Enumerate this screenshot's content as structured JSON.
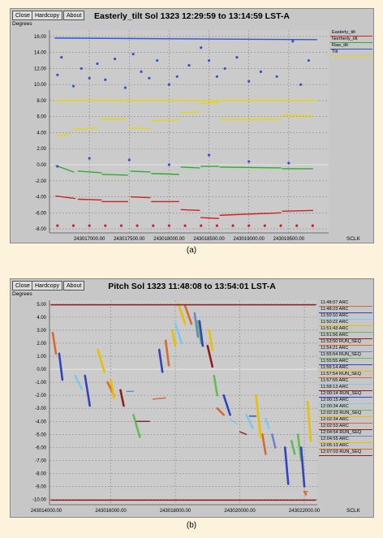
{
  "charts": {
    "a": {
      "buttons": {
        "close": "Close",
        "hardcopy": "Hardcopy",
        "about": "About"
      },
      "y_unit": "Degrees",
      "x_unit": "SCLK",
      "caption": "(a)"
    },
    "b": {
      "buttons": {
        "close": "Close",
        "hardcopy": "Hardcopy",
        "about": "About"
      },
      "y_unit": "Degrees",
      "x_unit": "SCLK",
      "caption": "(b)"
    }
  },
  "chart_data": [
    {
      "type": "scatter",
      "title": "Easterly_tilt Sol 1323 12:29:59 to 13:14:59 LST-A",
      "ylabel": "Degrees",
      "xlabel": "SCLK",
      "ylim": [
        -8.5,
        16.8
      ],
      "xlim": [
        243016500,
        243020000
      ],
      "y_ticks": [
        "16.00",
        "14.00",
        "12.00",
        "10.00",
        "8.00",
        "6.00",
        "4.00",
        "2.00",
        "0.00",
        "-2.00",
        "-4.00",
        "-6.00",
        "-8.00"
      ],
      "x_ticks": [
        "243017000.00",
        "243017500.00",
        "243018000.00",
        "243018500.00",
        "243019000.00",
        "243019500.00"
      ],
      "legend_placement": "top-right",
      "series": [
        {
          "name": "Easterly_tilt",
          "color": "#cc2222",
          "segments": [
            [
              243016580,
              -3.9,
              243016820,
              -4.2
            ],
            [
              243016860,
              -4.3,
              243017150,
              -4.4
            ],
            [
              243017160,
              -4.6,
              243017480,
              -4.6
            ],
            [
              243017520,
              -4.0,
              243017760,
              -4.1
            ],
            [
              243017780,
              -4.6,
              243018120,
              -4.6
            ],
            [
              243018150,
              -5.6,
              243018380,
              -5.7
            ],
            [
              243018400,
              -6.6,
              243018620,
              -6.7
            ],
            [
              243018640,
              -6.3,
              243019400,
              -6.0
            ],
            [
              243019420,
              -5.8,
              243019800,
              -5.7
            ]
          ],
          "markers": [
            [
              243016600,
              -7.6
            ],
            [
              243016800,
              -7.6
            ],
            [
              243017000,
              -7.6
            ],
            [
              243017200,
              -7.6
            ],
            [
              243017400,
              -7.6
            ],
            [
              243017600,
              -7.6
            ],
            [
              243017800,
              -7.6
            ],
            [
              243018000,
              -7.6
            ],
            [
              243018200,
              -7.6
            ],
            [
              243018400,
              -7.6
            ],
            [
              243018600,
              -7.6
            ],
            [
              243018800,
              -7.6
            ],
            [
              243019000,
              -7.6
            ],
            [
              243019200,
              -7.6
            ],
            [
              243019400,
              -7.6
            ],
            [
              243019600,
              -7.6
            ],
            [
              243019800,
              -7.6
            ]
          ]
        },
        {
          "name": "Northerly_tilt",
          "color": "#33aa33",
          "segments": [
            [
              243016580,
              -0.1,
              243016800,
              -0.9
            ],
            [
              243016860,
              -0.8,
              243017150,
              -1.0
            ],
            [
              243017160,
              -1.2,
              243017480,
              -1.3
            ],
            [
              243017520,
              -0.8,
              243017760,
              -0.9
            ],
            [
              243017780,
              -1.1,
              243018120,
              -1.2
            ],
            [
              243018150,
              -0.3,
              243018380,
              -0.4
            ],
            [
              243018400,
              -0.2,
              243018620,
              -0.2
            ],
            [
              243018640,
              -0.3,
              243019400,
              -0.4
            ],
            [
              243019420,
              -0.5,
              243019800,
              -0.5
            ]
          ],
          "markers": []
        },
        {
          "name": "Raw_tilt",
          "color": "#3355cc",
          "segments": [
            [
              243016570,
              15.8,
              243019850,
              15.6
            ]
          ],
          "markers": [
            [
              243016600,
              11.2
            ],
            [
              243016650,
              13.4
            ],
            [
              243016800,
              9.8
            ],
            [
              243016900,
              12.0
            ],
            [
              243017000,
              10.8
            ],
            [
              243017100,
              12.6
            ],
            [
              243017200,
              10.6
            ],
            [
              243017320,
              13.2
            ],
            [
              243017450,
              9.6
            ],
            [
              243017550,
              13.8
            ],
            [
              243017650,
              11.6
            ],
            [
              243017750,
              10.8
            ],
            [
              243017850,
              13.0
            ],
            [
              243018000,
              10.0
            ],
            [
              243018100,
              11.0
            ],
            [
              243018250,
              12.4
            ],
            [
              243018400,
              14.6
            ],
            [
              243018500,
              13.0
            ],
            [
              243018600,
              11.0
            ],
            [
              243018700,
              12.0
            ],
            [
              243018850,
              13.4
            ],
            [
              243019000,
              10.4
            ],
            [
              243019150,
              11.6
            ],
            [
              243019350,
              11.0
            ],
            [
              243019550,
              15.4
            ],
            [
              243019650,
              10.0
            ],
            [
              243019750,
              13.0
            ],
            [
              243016600,
              -0.2
            ],
            [
              243017000,
              0.8
            ],
            [
              243017500,
              0.6
            ],
            [
              243018000,
              0.0
            ],
            [
              243018500,
              1.2
            ],
            [
              243019000,
              0.4
            ],
            [
              243019500,
              0.2
            ]
          ]
        },
        {
          "name": "Tilt",
          "color": "#e8d800",
          "segments": [
            [
              243016570,
              8.0,
              243019850,
              8.0
            ],
            [
              243016600,
              3.6,
              243016760,
              3.8
            ],
            [
              243016800,
              4.4,
              243017100,
              4.6
            ],
            [
              243017150,
              5.7,
              243017460,
              5.7
            ],
            [
              243017500,
              4.6,
              243017760,
              4.5
            ],
            [
              243017780,
              5.5,
              243018120,
              5.6
            ],
            [
              243018150,
              6.5,
              243018380,
              6.6
            ],
            [
              243018400,
              7.6,
              243018620,
              7.8
            ],
            [
              243018640,
              5.6,
              243019400,
              5.7
            ],
            [
              243019420,
              6.2,
              243019800,
              6.1
            ]
          ],
          "markers": []
        }
      ]
    },
    {
      "type": "line",
      "title": "Pitch Sol 1323 11:48:08 to 13:54:01 LST-A",
      "ylabel": "Degrees",
      "xlabel": "SCLK",
      "ylim": [
        -10.4,
        5.3
      ],
      "xlim": [
        243014100,
        243022400
      ],
      "y_ticks": [
        "5.00",
        "4.00",
        "3.00",
        "2.00",
        "1.00",
        "0.00",
        "-1.00",
        "-2.00",
        "-3.00",
        "-4.00",
        "-5.00",
        "-6.00",
        "-7.00",
        "-8.00",
        "-9.00",
        "-10.00"
      ],
      "x_ticks": [
        "243014000.00",
        "243016000.00",
        "243018000.00",
        "243020000.00",
        "243022000.00"
      ],
      "legend_placement": "right",
      "series": [
        {
          "name": "11:48:07 ARC",
          "color": "#d86a30",
          "segments": [
            [
              243014200,
              2.8,
              243014300,
              1.2
            ],
            [
              243015900,
              -1.0,
              243016100,
              -2.0
            ],
            [
              243018300,
              4.9,
              243018500,
              3.5
            ],
            [
              243020700,
              -5.0,
              243020800,
              -6.5
            ]
          ]
        },
        {
          "name": "11:48:23 ARC",
          "color": "#3344bb",
          "segments": [
            [
              243014400,
              1.2,
              243014500,
              -0.8
            ],
            [
              243015200,
              -0.5,
              243015350,
              -2.8
            ],
            [
              243017500,
              1.5,
              243017600,
              -0.2
            ],
            [
              243019500,
              -2.0,
              243019700,
              -3.5
            ],
            [
              243021400,
              -6.0,
              243021500,
              -8.8
            ]
          ]
        },
        {
          "name": "11:50:10 ARC",
          "color": "#7ec8e8",
          "segments": [
            [
              243014900,
              -0.5,
              243015100,
              -1.5
            ],
            [
              243018000,
              3.5,
              243018200,
              2.0
            ],
            [
              243020200,
              -3.5,
              243020400,
              -4.5
            ]
          ]
        },
        {
          "name": "11:50:22 ARC",
          "color": "#e8c000",
          "segments": [
            [
              243015600,
              1.5,
              243015800,
              -0.2
            ],
            [
              243018100,
              5.0,
              243018300,
              3.5
            ],
            [
              243020500,
              -2.0,
              243020650,
              -5.2
            ]
          ]
        },
        {
          "name": "11:51:43 ARC",
          "color": "#66bb55",
          "segments": [
            [
              243016700,
              -3.5,
              243016900,
              -5.2
            ],
            [
              243019200,
              -0.5,
              243019300,
              -2.0
            ]
          ]
        },
        {
          "name": "11:51:56 ARC",
          "color": "#8a2020",
          "segments": [
            [
              243016800,
              -4.0,
              243017200,
              -4.0
            ],
            [
              243019000,
              1.8,
              243019150,
              0.2
            ]
          ]
        },
        {
          "name": "11:53:50 RUN_SEQ",
          "color": "#d86a30",
          "segments": [
            [
              243017300,
              -2.3,
              243017700,
              -2.2
            ],
            [
              243022000,
              -9.4,
              243022100,
              -9.4
            ]
          ]
        },
        {
          "name": "11:54:21 ARC",
          "color": "#6688cc",
          "segments": [
            [
              243018600,
              4.3,
              243018700,
              2.5
            ],
            [
              243021000,
              -5.0,
              243021100,
              -6.0
            ]
          ]
        },
        {
          "name": "11:55:54 RUN_SEQ",
          "color": "#66bb55",
          "segments": [
            [
              243018700,
              3.7,
              243018800,
              2.0
            ],
            [
              243021800,
              -5.0,
              243021900,
              -7.0
            ]
          ]
        },
        {
          "name": "11:55:55 ARC",
          "color": "#3344bb",
          "segments": [
            [
              243018750,
              3.7,
              243018850,
              1.8
            ],
            [
              243021900,
              -6.0,
              243022000,
              -9.0
            ]
          ]
        },
        {
          "name": "11:56:14 ARC",
          "color": "#e8c000",
          "segments": [
            [
              243019050,
              3.0,
              243019150,
              1.5
            ],
            [
              243022100,
              -2.5,
              243022200,
              -5.5
            ]
          ]
        },
        {
          "name": "11:57:54 RUN_SEQ",
          "color": "#d86a30",
          "segments": [
            [
              243019300,
              -3.0,
              243019500,
              -3.5
            ]
          ]
        },
        {
          "name": "11:57:55 ARC",
          "color": "#7ec8e8",
          "segments": [
            [
              243019700,
              -3.8,
              243019900,
              -4.2
            ]
          ]
        },
        {
          "name": "11:58:13 ARC",
          "color": "#8a2020",
          "segments": [
            [
              243020000,
              -4.8,
              243020200,
              -5.0
            ]
          ]
        },
        {
          "name": "12:00:14 RUN_SEQ",
          "color": "#3344bb",
          "segments": [
            [
              243020300,
              -3.6,
              243020500,
              -3.6
            ]
          ]
        },
        {
          "name": "12:00:15 ARC",
          "color": "#7ec8e8",
          "segments": [
            [
              243020800,
              -3.8,
              243020900,
              -4.5
            ]
          ]
        },
        {
          "name": "12:00:34 ARC",
          "color": "#66bb55",
          "segments": [
            [
              243021600,
              -5.5,
              243021700,
              -6.5
            ]
          ]
        },
        {
          "name": "12:02:33 RUN_SEQ",
          "color": "#e8c000",
          "segments": [
            [
              243017900,
              3.0,
              243018000,
              1.8
            ]
          ]
        },
        {
          "name": "12:02:34 ARC",
          "color": "#d86a30",
          "segments": [
            [
              243017700,
              2.2,
              243017800,
              0.3
            ]
          ]
        },
        {
          "name": "12:02:53 ARC",
          "color": "#8a2020",
          "segments": [
            [
              243016300,
              -1.6,
              243016400,
              -2.8
            ]
          ]
        },
        {
          "name": "12:04:54 RUN_SEQ",
          "color": "#6688cc",
          "segments": [
            [
              243016500,
              -1.7,
              243016700,
              -1.7
            ]
          ]
        },
        {
          "name": "12:04:55 ARC",
          "color": "#e8c000",
          "segments": [
            [
              243016000,
              -0.8,
              243016100,
              -2.2
            ]
          ]
        },
        {
          "name": "12:05:13 ARC",
          "color": "#d86a30",
          "segments": [
            [
              243022000,
              -9.4,
              243022050,
              -9.6
            ]
          ]
        },
        {
          "name": "12:07:03 RUN_SEQ",
          "color": "#8a2020",
          "segments": [
            [
              243014150,
              4.95,
              243022350,
              4.95
            ],
            [
              243014150,
              -10.05,
              243022350,
              -10.05
            ]
          ]
        }
      ]
    }
  ]
}
